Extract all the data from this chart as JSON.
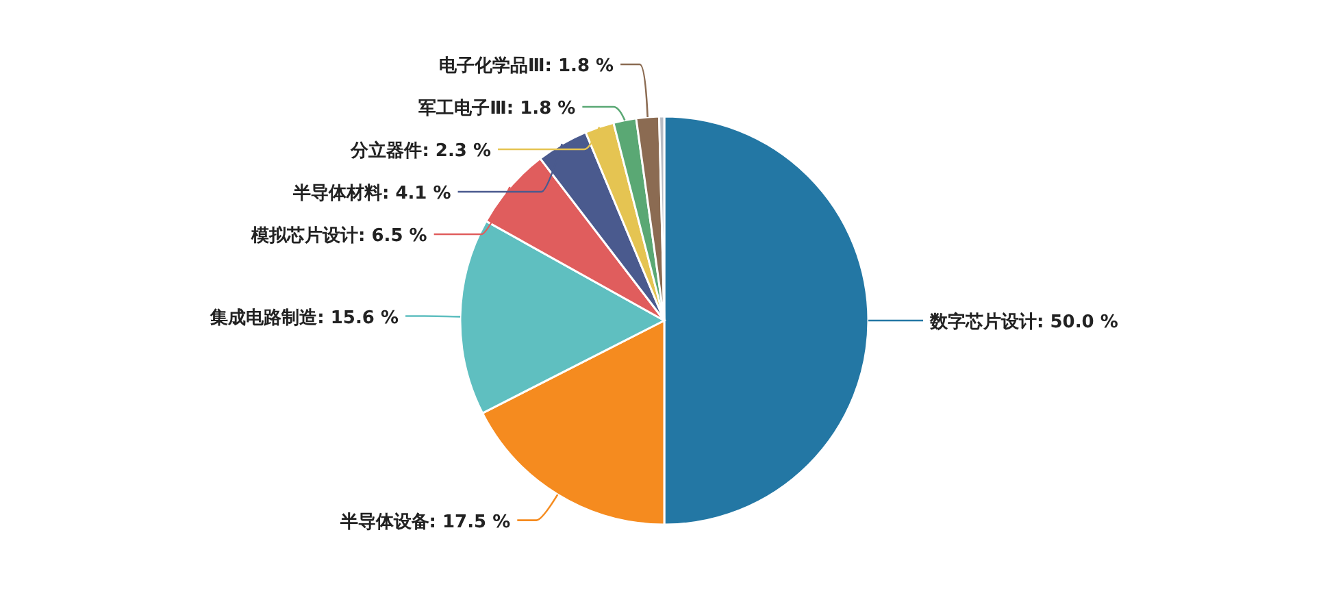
{
  "chart_data": {
    "type": "pie",
    "categories": [
      "数字芯片设计",
      "半导体设备",
      "集成电路制造",
      "模拟芯片设计",
      "半导体材料",
      "分立器件",
      "军工电子Ⅲ",
      "电子化学品Ⅲ",
      null
    ],
    "values": [
      50.0,
      17.5,
      15.6,
      6.5,
      4.1,
      2.3,
      1.8,
      1.8,
      0.4
    ],
    "value_labels": [
      ": 50.0 %",
      ": 17.5 %",
      ": 15.6 %",
      ": 6.5 %",
      ": 4.1 %",
      ": 2.3 %",
      ": 1.8 %",
      ": 1.8 %",
      null
    ],
    "colors": [
      "#2377a4",
      "#f58b1f",
      "#5fbfc0",
      "#e05d5d",
      "#4a5a8e",
      "#e5c452",
      "#5aa874",
      "#8b6b52",
      "#b8bcc4"
    ],
    "legend": false
  }
}
